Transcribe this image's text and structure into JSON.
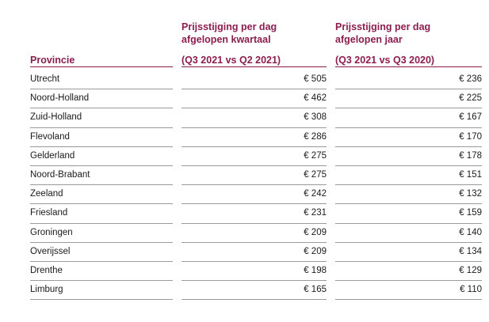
{
  "header": {
    "province_label": "Provincie",
    "quarter_line1": "Prijsstijging per dag",
    "quarter_line2": "afgelopen kwartaal",
    "quarter_period": "(Q3 2021 vs Q2 2021)",
    "year_line1": "Prijsstijging per dag",
    "year_line2": "afgelopen jaar",
    "year_period": "(Q3 2021 vs Q3 2020)"
  },
  "rows": [
    {
      "province": "Utrecht",
      "quarter": "€ 505",
      "year": "€ 236"
    },
    {
      "province": "Noord-Holland",
      "quarter": "€ 462",
      "year": "€ 225"
    },
    {
      "province": "Zuid-Holland",
      "quarter": "€ 308",
      "year": "€ 167"
    },
    {
      "province": "Flevoland",
      "quarter": "€ 286",
      "year": "€ 170"
    },
    {
      "province": "Gelderland",
      "quarter": "€ 275",
      "year": "€ 178"
    },
    {
      "province": "Noord-Brabant",
      "quarter": "€ 275",
      "year": "€ 151"
    },
    {
      "province": "Zeeland",
      "quarter": "€ 242",
      "year": "€ 132"
    },
    {
      "province": "Friesland",
      "quarter": "€ 231",
      "year": "€ 159"
    },
    {
      "province": "Groningen",
      "quarter": "€ 209",
      "year": "€ 140"
    },
    {
      "province": "Overijssel",
      "quarter": "€ 209",
      "year": "€ 134"
    },
    {
      "province": "Drenthe",
      "quarter": "€ 198",
      "year": "€ 129"
    },
    {
      "province": "Limburg",
      "quarter": "€ 165",
      "year": "€ 110"
    }
  ]
}
